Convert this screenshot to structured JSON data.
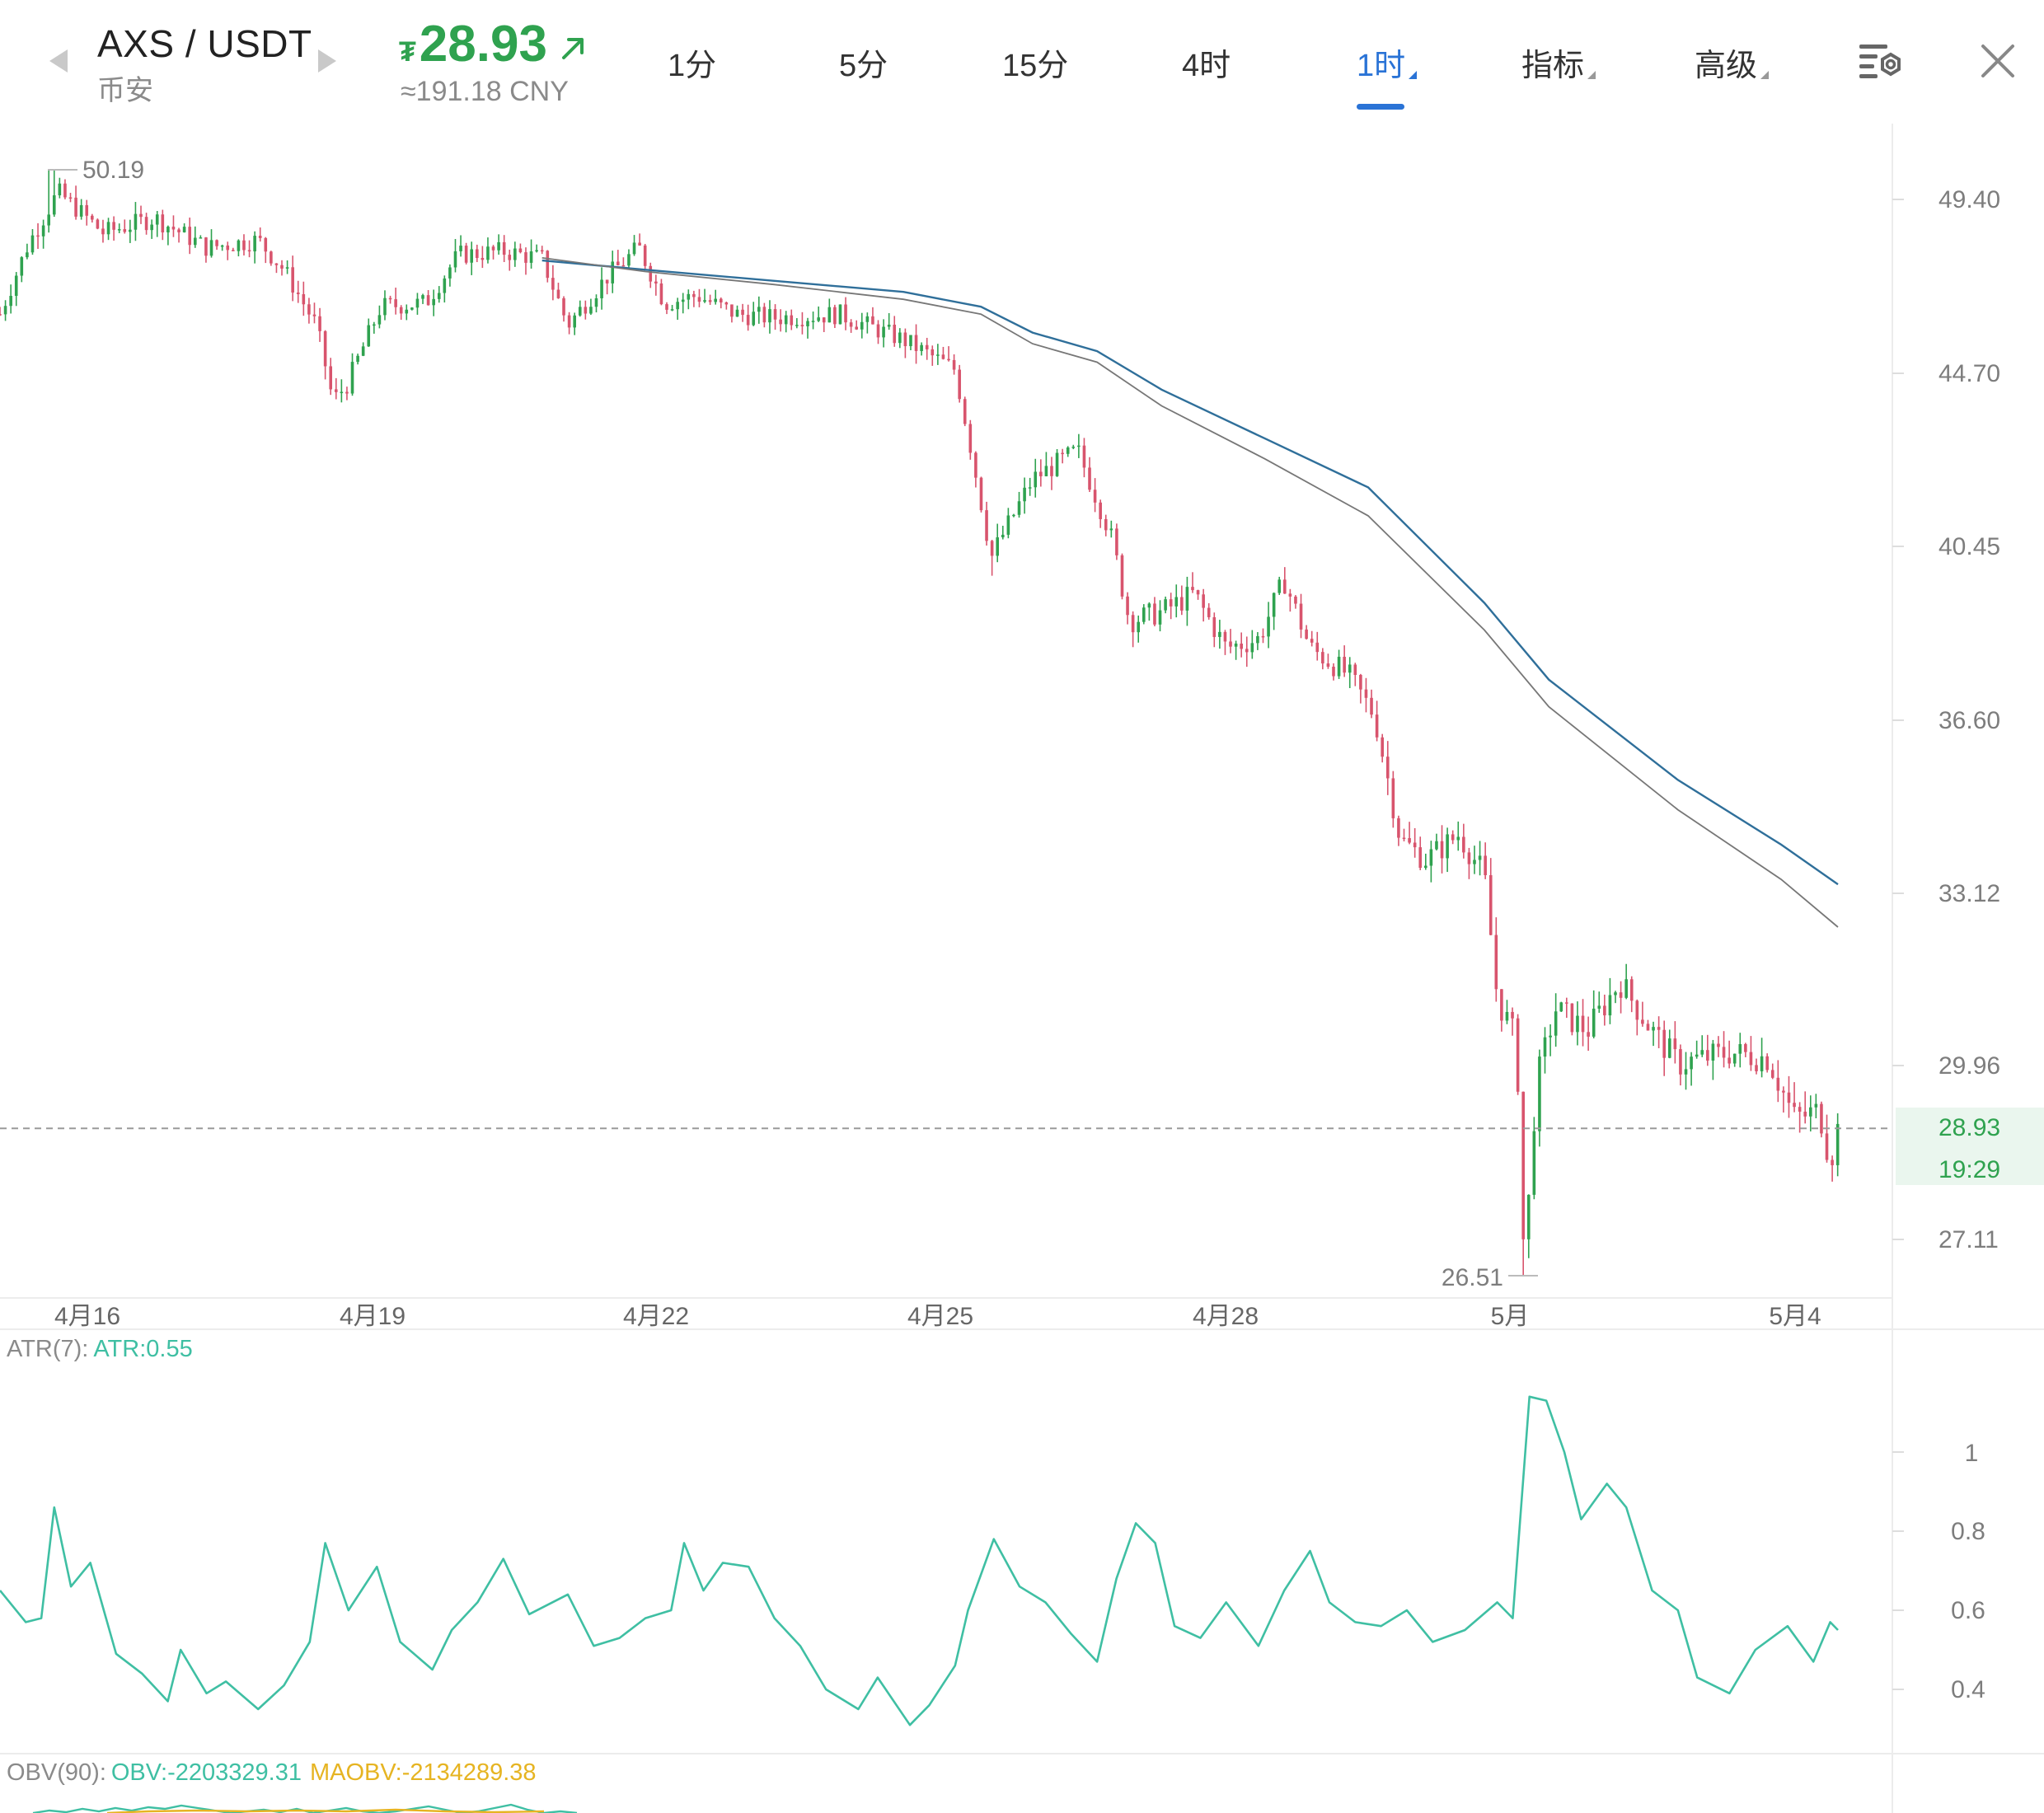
{
  "header": {
    "symbol": "AXS / USDT",
    "exchange": "币安",
    "price_currency": "₮",
    "price": "28.93",
    "price_cny": "≈191.18 CNY",
    "tabs": [
      {
        "label": "1分",
        "active": false,
        "has_menu": false
      },
      {
        "label": "5分",
        "active": false,
        "has_menu": false
      },
      {
        "label": "15分",
        "active": false,
        "has_menu": false
      },
      {
        "label": "4时",
        "active": false,
        "has_menu": false
      },
      {
        "label": "1时",
        "active": true,
        "has_menu": true
      },
      {
        "label": "指标",
        "active": false,
        "has_menu": true
      },
      {
        "label": "高级",
        "active": false,
        "has_menu": true
      }
    ],
    "icons": {
      "prev": "triangle-left-icon",
      "next": "triangle-right-icon",
      "trend": "arrow-up-right-icon",
      "settings": "chart-settings-icon",
      "close": "close-icon"
    }
  },
  "colors": {
    "up": "#2fa24f",
    "down": "#d8546d",
    "ma_blue": "#2f6f9a",
    "ma_gray": "#777777",
    "atr": "#3fbfa3",
    "obv": "#3fbfa3",
    "maobv": "#e6b422",
    "accent": "#2a73d6"
  },
  "chart_data": [
    {
      "type": "candlestick",
      "interval": "1时",
      "x_tick_labels": [
        "4月16",
        "4月19",
        "4月22",
        "4月25",
        "4月28",
        "5月",
        "5月4"
      ],
      "y_tick_labels": [
        "49.40",
        "44.70",
        "40.45",
        "36.60",
        "33.12",
        "29.96",
        "27.11"
      ],
      "ylim": [
        25.9,
        51.2
      ],
      "high_marker": "50.19",
      "low_marker": "26.51",
      "last_price": "28.93",
      "countdown": "19:29",
      "close_path": [
        {
          "x": 0,
          "y": 46.3
        },
        {
          "x": 22,
          "y": 48.2
        },
        {
          "x": 45,
          "y": 49.6
        },
        {
          "x": 80,
          "y": 48.5
        },
        {
          "x": 120,
          "y": 48.9
        },
        {
          "x": 160,
          "y": 48.1
        },
        {
          "x": 200,
          "y": 48.3
        },
        {
          "x": 220,
          "y": 47.5
        },
        {
          "x": 245,
          "y": 46.0
        },
        {
          "x": 258,
          "y": 44.0
        },
        {
          "x": 270,
          "y": 44.5
        },
        {
          "x": 295,
          "y": 46.5
        },
        {
          "x": 330,
          "y": 46.6
        },
        {
          "x": 355,
          "y": 47.9
        },
        {
          "x": 390,
          "y": 48.0
        },
        {
          "x": 420,
          "y": 47.8
        },
        {
          "x": 440,
          "y": 46.0
        },
        {
          "x": 470,
          "y": 47.3
        },
        {
          "x": 495,
          "y": 48.1
        },
        {
          "x": 515,
          "y": 46.6
        },
        {
          "x": 540,
          "y": 46.8
        },
        {
          "x": 570,
          "y": 46.3
        },
        {
          "x": 600,
          "y": 46.2
        },
        {
          "x": 650,
          "y": 46.3
        },
        {
          "x": 700,
          "y": 45.6
        },
        {
          "x": 740,
          "y": 44.8
        },
        {
          "x": 752,
          "y": 42.9
        },
        {
          "x": 768,
          "y": 40.2
        },
        {
          "x": 800,
          "y": 42.1
        },
        {
          "x": 835,
          "y": 42.8
        },
        {
          "x": 860,
          "y": 40.8
        },
        {
          "x": 875,
          "y": 38.8
        },
        {
          "x": 900,
          "y": 39.0
        },
        {
          "x": 925,
          "y": 39.4
        },
        {
          "x": 950,
          "y": 38.2
        },
        {
          "x": 975,
          "y": 38.4
        },
        {
          "x": 995,
          "y": 39.7
        },
        {
          "x": 1015,
          "y": 38.2
        },
        {
          "x": 1045,
          "y": 37.6
        },
        {
          "x": 1065,
          "y": 36.7
        },
        {
          "x": 1085,
          "y": 34.2
        },
        {
          "x": 1105,
          "y": 33.8
        },
        {
          "x": 1130,
          "y": 34.3
        },
        {
          "x": 1150,
          "y": 33.5
        },
        {
          "x": 1160,
          "y": 31.2
        },
        {
          "x": 1175,
          "y": 30.4
        },
        {
          "x": 1181,
          "y": 26.6
        },
        {
          "x": 1190,
          "y": 29.6
        },
        {
          "x": 1205,
          "y": 31.0
        },
        {
          "x": 1230,
          "y": 30.6
        },
        {
          "x": 1255,
          "y": 31.5
        },
        {
          "x": 1280,
          "y": 30.6
        },
        {
          "x": 1300,
          "y": 30.0
        },
        {
          "x": 1340,
          "y": 30.2
        },
        {
          "x": 1370,
          "y": 30.1
        },
        {
          "x": 1390,
          "y": 29.1
        },
        {
          "x": 1410,
          "y": 29.2
        },
        {
          "x": 1418,
          "y": 28.4
        },
        {
          "x": 1424,
          "y": 28.93
        }
      ],
      "moving_averages": [
        {
          "color": "blue",
          "points": [
            {
              "x": 420,
              "y": 47.75
            },
            {
              "x": 500,
              "y": 47.5
            },
            {
              "x": 600,
              "y": 47.2
            },
            {
              "x": 700,
              "y": 46.9
            },
            {
              "x": 760,
              "y": 46.5
            },
            {
              "x": 800,
              "y": 45.8
            },
            {
              "x": 850,
              "y": 45.3
            },
            {
              "x": 900,
              "y": 44.3
            },
            {
              "x": 980,
              "y": 43.1
            },
            {
              "x": 1060,
              "y": 41.9
            },
            {
              "x": 1150,
              "y": 39.2
            },
            {
              "x": 1200,
              "y": 37.5
            },
            {
              "x": 1300,
              "y": 35.4
            },
            {
              "x": 1380,
              "y": 34.1
            },
            {
              "x": 1424,
              "y": 33.3
            }
          ]
        },
        {
          "color": "gray",
          "points": [
            {
              "x": 420,
              "y": 47.82
            },
            {
              "x": 500,
              "y": 47.45
            },
            {
              "x": 600,
              "y": 47.1
            },
            {
              "x": 700,
              "y": 46.7
            },
            {
              "x": 760,
              "y": 46.3
            },
            {
              "x": 800,
              "y": 45.5
            },
            {
              "x": 850,
              "y": 45.0
            },
            {
              "x": 900,
              "y": 43.9
            },
            {
              "x": 980,
              "y": 42.6
            },
            {
              "x": 1060,
              "y": 41.2
            },
            {
              "x": 1150,
              "y": 38.6
            },
            {
              "x": 1200,
              "y": 36.9
            },
            {
              "x": 1300,
              "y": 34.8
            },
            {
              "x": 1380,
              "y": 33.4
            },
            {
              "x": 1424,
              "y": 32.5
            }
          ]
        }
      ]
    },
    {
      "type": "line",
      "label_prefix": "ATR(7):",
      "label_value": "ATR:0.55",
      "y_tick_labels": [
        "1",
        "0.8",
        "0.6",
        "0.4"
      ],
      "ylim": [
        0.3,
        1.25
      ],
      "points": [
        {
          "x": 0,
          "y": 0.65
        },
        {
          "x": 20,
          "y": 0.57
        },
        {
          "x": 32,
          "y": 0.58
        },
        {
          "x": 42,
          "y": 0.86
        },
        {
          "x": 55,
          "y": 0.66
        },
        {
          "x": 70,
          "y": 0.72
        },
        {
          "x": 90,
          "y": 0.49
        },
        {
          "x": 110,
          "y": 0.44
        },
        {
          "x": 130,
          "y": 0.37
        },
        {
          "x": 140,
          "y": 0.5
        },
        {
          "x": 160,
          "y": 0.39
        },
        {
          "x": 175,
          "y": 0.42
        },
        {
          "x": 200,
          "y": 0.35
        },
        {
          "x": 220,
          "y": 0.41
        },
        {
          "x": 240,
          "y": 0.52
        },
        {
          "x": 252,
          "y": 0.77
        },
        {
          "x": 270,
          "y": 0.6
        },
        {
          "x": 292,
          "y": 0.71
        },
        {
          "x": 310,
          "y": 0.52
        },
        {
          "x": 335,
          "y": 0.45
        },
        {
          "x": 350,
          "y": 0.55
        },
        {
          "x": 370,
          "y": 0.62
        },
        {
          "x": 390,
          "y": 0.73
        },
        {
          "x": 410,
          "y": 0.59
        },
        {
          "x": 440,
          "y": 0.64
        },
        {
          "x": 460,
          "y": 0.51
        },
        {
          "x": 480,
          "y": 0.53
        },
        {
          "x": 500,
          "y": 0.58
        },
        {
          "x": 520,
          "y": 0.6
        },
        {
          "x": 530,
          "y": 0.77
        },
        {
          "x": 545,
          "y": 0.65
        },
        {
          "x": 560,
          "y": 0.72
        },
        {
          "x": 580,
          "y": 0.71
        },
        {
          "x": 600,
          "y": 0.58
        },
        {
          "x": 620,
          "y": 0.51
        },
        {
          "x": 640,
          "y": 0.4
        },
        {
          "x": 665,
          "y": 0.35
        },
        {
          "x": 680,
          "y": 0.43
        },
        {
          "x": 705,
          "y": 0.31
        },
        {
          "x": 720,
          "y": 0.36
        },
        {
          "x": 740,
          "y": 0.46
        },
        {
          "x": 750,
          "y": 0.6
        },
        {
          "x": 770,
          "y": 0.78
        },
        {
          "x": 790,
          "y": 0.66
        },
        {
          "x": 810,
          "y": 0.62
        },
        {
          "x": 830,
          "y": 0.54
        },
        {
          "x": 850,
          "y": 0.47
        },
        {
          "x": 865,
          "y": 0.68
        },
        {
          "x": 880,
          "y": 0.82
        },
        {
          "x": 895,
          "y": 0.77
        },
        {
          "x": 910,
          "y": 0.56
        },
        {
          "x": 930,
          "y": 0.53
        },
        {
          "x": 950,
          "y": 0.62
        },
        {
          "x": 975,
          "y": 0.51
        },
        {
          "x": 995,
          "y": 0.65
        },
        {
          "x": 1015,
          "y": 0.75
        },
        {
          "x": 1030,
          "y": 0.62
        },
        {
          "x": 1050,
          "y": 0.57
        },
        {
          "x": 1070,
          "y": 0.56
        },
        {
          "x": 1090,
          "y": 0.6
        },
        {
          "x": 1110,
          "y": 0.52
        },
        {
          "x": 1135,
          "y": 0.55
        },
        {
          "x": 1160,
          "y": 0.62
        },
        {
          "x": 1172,
          "y": 0.58
        },
        {
          "x": 1185,
          "y": 1.14
        },
        {
          "x": 1198,
          "y": 1.13
        },
        {
          "x": 1212,
          "y": 1.0
        },
        {
          "x": 1225,
          "y": 0.83
        },
        {
          "x": 1245,
          "y": 0.92
        },
        {
          "x": 1260,
          "y": 0.86
        },
        {
          "x": 1280,
          "y": 0.65
        },
        {
          "x": 1300,
          "y": 0.6
        },
        {
          "x": 1315,
          "y": 0.43
        },
        {
          "x": 1340,
          "y": 0.39
        },
        {
          "x": 1360,
          "y": 0.5
        },
        {
          "x": 1385,
          "y": 0.56
        },
        {
          "x": 1405,
          "y": 0.47
        },
        {
          "x": 1418,
          "y": 0.57
        },
        {
          "x": 1424,
          "y": 0.55
        }
      ]
    },
    {
      "type": "line",
      "label_prefix": "OBV(90):",
      "obv_value": "OBV:-2203329.31",
      "maobv_value": "MAOBV:-2134289.38"
    }
  ]
}
